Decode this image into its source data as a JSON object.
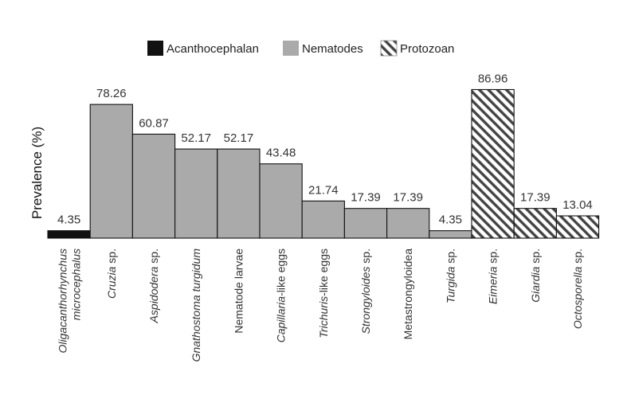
{
  "chart_data": {
    "type": "bar",
    "title": "",
    "xlabel": "",
    "ylabel": "Prevalence (%)",
    "ylim": [
      0,
      100
    ],
    "grid": false,
    "legend_position": "top-center",
    "legend": [
      {
        "name": "Acanthocephalan",
        "fill": "solid-black",
        "color": "#111111"
      },
      {
        "name": "Nematodes",
        "fill": "solid-gray",
        "color": "#aaaaaa"
      },
      {
        "name": "Protozoan",
        "fill": "diagonal-hatch",
        "color": "#444444"
      }
    ],
    "categories": [
      {
        "parts": [
          {
            "t": "Oligacanthorhynchus",
            "i": true
          }
        ],
        "parts2": [
          {
            "t": "microcephalus",
            "i": true
          }
        ]
      },
      {
        "parts": [
          {
            "t": "Cruzia",
            "i": true
          },
          {
            "t": " sp.",
            "i": false
          }
        ]
      },
      {
        "parts": [
          {
            "t": "Aspidodera",
            "i": true
          },
          {
            "t": " sp.",
            "i": false
          }
        ]
      },
      {
        "parts": [
          {
            "t": "Gnathostoma turgidum",
            "i": true
          }
        ]
      },
      {
        "parts": [
          {
            "t": "Nematode larvae",
            "i": false
          }
        ]
      },
      {
        "parts": [
          {
            "t": "Capillaria",
            "i": true
          },
          {
            "t": "-like eggs",
            "i": false
          }
        ]
      },
      {
        "parts": [
          {
            "t": "Trichuris",
            "i": true
          },
          {
            "t": "-like eggs",
            "i": false
          }
        ]
      },
      {
        "parts": [
          {
            "t": "Strongyloides",
            "i": true
          },
          {
            "t": " sp.",
            "i": false
          }
        ]
      },
      {
        "parts": [
          {
            "t": "Metastrongyloidea",
            "i": false
          }
        ]
      },
      {
        "parts": [
          {
            "t": "Turgida",
            "i": true
          },
          {
            "t": "  sp.",
            "i": false
          }
        ]
      },
      {
        "parts": [
          {
            "t": "Eimeria",
            "i": true
          },
          {
            "t": " sp.",
            "i": false
          }
        ]
      },
      {
        "parts": [
          {
            "t": "Giardia",
            "i": true
          },
          {
            "t": " sp.",
            "i": false
          }
        ]
      },
      {
        "parts": [
          {
            "t": "Octosporella",
            "i": true
          },
          {
            "t": " sp.",
            "i": false
          }
        ]
      }
    ],
    "values": [
      4.35,
      78.26,
      60.87,
      52.17,
      52.17,
      43.48,
      21.74,
      17.39,
      17.39,
      4.35,
      86.96,
      17.39,
      13.04
    ],
    "value_labels": [
      "4.35",
      "78.26",
      "60.87",
      "52.17",
      "52.17",
      "43.48",
      "21.74",
      "17.39",
      "17.39",
      "4.35",
      "86.96",
      "17.39",
      "13.04"
    ],
    "groups": [
      "Acanthocephalan",
      "Nematodes",
      "Nematodes",
      "Nematodes",
      "Nematodes",
      "Nematodes",
      "Nematodes",
      "Nematodes",
      "Nematodes",
      "Nematodes",
      "Protozoan",
      "Protozoan",
      "Protozoan"
    ]
  }
}
